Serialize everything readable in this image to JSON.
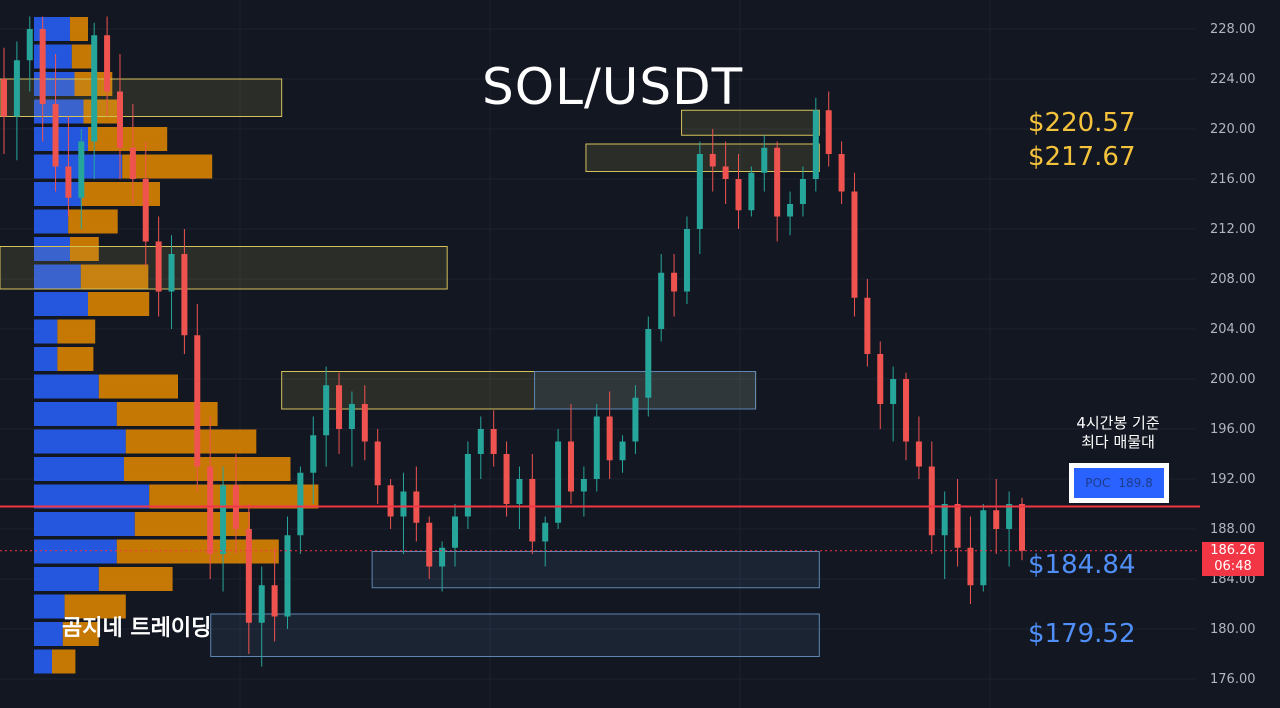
{
  "title": "SOL/USDT",
  "watermark": "곰지네 트레이딩",
  "poc_note": [
    "4시간봉 기준",
    "최다 매물대"
  ],
  "poc_label": "POC",
  "poc_value": "189.8",
  "current_price": "186.26",
  "countdown": "06:48",
  "level_labels": [
    {
      "text": "$220.57",
      "color": "#f5c33b"
    },
    {
      "text": "$217.67",
      "color": "#f5c33b"
    },
    {
      "text": "$184.84",
      "color": "#4f8ff7"
    },
    {
      "text": "$179.52",
      "color": "#4f8ff7"
    }
  ],
  "colors": {
    "up": "#26a69a",
    "down": "#ef5350",
    "poc_line": "#f23645",
    "vp_blue": "#2962ff",
    "vp_orange": "#e68a00",
    "zone_yellow": "#d4c15a",
    "zone_blue": "#5d86b3"
  },
  "chart_data": {
    "type": "candlestick",
    "title": "SOL/USDT",
    "timeframe": "4h",
    "y_range": [
      175,
      230
    ],
    "y_ticks": [
      176,
      180,
      184,
      188,
      192,
      196,
      200,
      204,
      208,
      212,
      216,
      220,
      224,
      228
    ],
    "y_tick_labels": [
      "176.00",
      "180.00",
      "184.00",
      "188.00",
      "192.00",
      "196.00",
      "200.00",
      "204.00",
      "208.00",
      "212.00",
      "216.00",
      "220.00",
      "224.00",
      "228.00"
    ],
    "poc": 189.8,
    "last_price": 186.26,
    "levels": [
      220.57,
      217.67,
      184.84,
      179.52
    ],
    "zones": [
      {
        "kind": "supply",
        "x0": 0.0,
        "x1": 0.274,
        "low": 221.0,
        "high": 224.0
      },
      {
        "kind": "supply",
        "x0": 0.0,
        "x1": 0.435,
        "low": 207.2,
        "high": 210.6
      },
      {
        "kind": "supply",
        "x0": 0.274,
        "x1": 0.735,
        "low": 197.6,
        "high": 200.6
      },
      {
        "kind": "demand",
        "x0": 0.52,
        "x1": 0.735,
        "low": 197.6,
        "high": 200.6
      },
      {
        "kind": "supply",
        "x0": 0.663,
        "x1": 0.797,
        "low": 219.5,
        "high": 221.5
      },
      {
        "kind": "supply",
        "x0": 0.57,
        "x1": 0.797,
        "low": 216.6,
        "high": 218.8
      },
      {
        "kind": "demand",
        "x0": 0.362,
        "x1": 0.797,
        "low": 183.3,
        "high": 186.2
      },
      {
        "kind": "demand",
        "x0": 0.205,
        "x1": 0.797,
        "low": 177.8,
        "high": 181.2
      }
    ],
    "volume_profile": [
      {
        "price": 228.0,
        "up": 40,
        "down": 20
      },
      {
        "price": 225.8,
        "up": 42,
        "down": 28
      },
      {
        "price": 223.6,
        "up": 45,
        "down": 42
      },
      {
        "price": 221.4,
        "up": 55,
        "down": 38
      },
      {
        "price": 219.2,
        "up": 60,
        "down": 88
      },
      {
        "price": 217.0,
        "up": 98,
        "down": 100
      },
      {
        "price": 214.8,
        "up": 52,
        "down": 88
      },
      {
        "price": 212.6,
        "up": 38,
        "down": 55
      },
      {
        "price": 210.4,
        "up": 40,
        "down": 32
      },
      {
        "price": 208.2,
        "up": 52,
        "down": 75
      },
      {
        "price": 206.0,
        "up": 60,
        "down": 68
      },
      {
        "price": 203.8,
        "up": 26,
        "down": 42
      },
      {
        "price": 201.6,
        "up": 26,
        "down": 40
      },
      {
        "price": 199.4,
        "up": 72,
        "down": 88
      },
      {
        "price": 197.2,
        "up": 92,
        "down": 112
      },
      {
        "price": 195.0,
        "up": 102,
        "down": 145
      },
      {
        "price": 192.8,
        "up": 100,
        "down": 185
      },
      {
        "price": 190.6,
        "up": 128,
        "down": 188
      },
      {
        "price": 188.4,
        "up": 112,
        "down": 128
      },
      {
        "price": 186.2,
        "up": 92,
        "down": 180
      },
      {
        "price": 184.0,
        "up": 72,
        "down": 82
      },
      {
        "price": 181.8,
        "up": 34,
        "down": 68
      },
      {
        "price": 179.6,
        "up": 32,
        "down": 40
      },
      {
        "price": 177.4,
        "up": 20,
        "down": 26
      }
    ],
    "candles": [
      [
        224.0,
        226.5,
        218.0,
        221.0
      ],
      [
        221.0,
        227.0,
        217.5,
        225.5
      ],
      [
        225.5,
        229.0,
        223.0,
        228.0
      ],
      [
        228.0,
        229.0,
        219.0,
        222.0
      ],
      [
        222.0,
        226.0,
        215.0,
        217.0
      ],
      [
        217.0,
        221.0,
        213.0,
        214.5
      ],
      [
        214.5,
        220.0,
        212.0,
        219.0
      ],
      [
        219.0,
        228.5,
        216.0,
        227.5
      ],
      [
        227.5,
        229.0,
        221.0,
        223.0
      ],
      [
        223.0,
        226.0,
        216.0,
        218.5
      ],
      [
        218.5,
        222.0,
        214.0,
        216.0
      ],
      [
        216.0,
        219.0,
        209.0,
        211.0
      ],
      [
        211.0,
        213.0,
        205.0,
        207.0
      ],
      [
        207.0,
        211.5,
        204.0,
        210.0
      ],
      [
        210.0,
        212.0,
        202.0,
        203.5
      ],
      [
        203.5,
        206.0,
        191.0,
        193.0
      ],
      [
        193.0,
        197.0,
        184.0,
        186.0
      ],
      [
        186.0,
        193.0,
        183.0,
        191.5
      ],
      [
        191.5,
        194.0,
        186.0,
        188.0
      ],
      [
        188.0,
        190.0,
        178.0,
        180.5
      ],
      [
        180.5,
        185.0,
        177.0,
        183.5
      ],
      [
        183.5,
        186.5,
        179.0,
        181.0
      ],
      [
        181.0,
        189.0,
        180.0,
        187.5
      ],
      [
        187.5,
        193.0,
        186.0,
        192.5
      ],
      [
        192.5,
        197.0,
        190.0,
        195.5
      ],
      [
        195.5,
        201.0,
        193.0,
        199.5
      ],
      [
        199.5,
        200.5,
        194.0,
        196.0
      ],
      [
        196.0,
        199.0,
        193.0,
        198.0
      ],
      [
        198.0,
        199.5,
        193.5,
        195.0
      ],
      [
        195.0,
        196.0,
        190.0,
        191.5
      ],
      [
        191.5,
        192.0,
        188.0,
        189.0
      ],
      [
        189.0,
        192.5,
        186.0,
        191.0
      ],
      [
        191.0,
        193.0,
        187.0,
        188.5
      ],
      [
        188.5,
        189.0,
        184.0,
        185.0
      ],
      [
        185.0,
        187.0,
        183.0,
        186.5
      ],
      [
        186.5,
        190.0,
        185.0,
        189.0
      ],
      [
        189.0,
        195.0,
        188.0,
        194.0
      ],
      [
        194.0,
        197.0,
        192.0,
        196.0
      ],
      [
        196.0,
        197.5,
        193.0,
        194.0
      ],
      [
        194.0,
        195.0,
        189.0,
        190.0
      ],
      [
        190.0,
        193.0,
        188.0,
        192.0
      ],
      [
        192.0,
        194.0,
        186.0,
        187.0
      ],
      [
        187.0,
        189.0,
        185.0,
        188.5
      ],
      [
        188.5,
        196.0,
        188.0,
        195.0
      ],
      [
        195.0,
        198.0,
        190.0,
        191.0
      ],
      [
        191.0,
        193.0,
        189.0,
        192.0
      ],
      [
        192.0,
        198.0,
        191.0,
        197.0
      ],
      [
        197.0,
        199.0,
        192.0,
        193.5
      ],
      [
        193.5,
        195.5,
        192.5,
        195.0
      ],
      [
        195.0,
        199.5,
        194.0,
        198.5
      ],
      [
        198.5,
        205.0,
        197.0,
        204.0
      ],
      [
        204.0,
        210.0,
        203.0,
        208.5
      ],
      [
        208.5,
        210.0,
        205.0,
        207.0
      ],
      [
        207.0,
        213.0,
        206.0,
        212.0
      ],
      [
        212.0,
        219.0,
        210.0,
        218.0
      ],
      [
        218.0,
        220.0,
        215.0,
        217.0
      ],
      [
        217.0,
        219.0,
        214.0,
        216.0
      ],
      [
        216.0,
        218.0,
        212.0,
        213.5
      ],
      [
        213.5,
        217.0,
        213.0,
        216.5
      ],
      [
        216.5,
        219.5,
        215.0,
        218.5
      ],
      [
        218.5,
        219.0,
        211.0,
        213.0
      ],
      [
        213.0,
        215.0,
        211.5,
        214.0
      ],
      [
        214.0,
        217.0,
        213.0,
        216.0
      ],
      [
        216.0,
        222.5,
        215.0,
        221.5
      ],
      [
        221.5,
        223.0,
        217.0,
        218.0
      ],
      [
        218.0,
        219.0,
        214.0,
        215.0
      ],
      [
        215.0,
        216.5,
        205.0,
        206.5
      ],
      [
        206.5,
        208.0,
        201.0,
        202.0
      ],
      [
        202.0,
        203.0,
        196.0,
        198.0
      ],
      [
        198.0,
        201.0,
        195.0,
        200.0
      ],
      [
        200.0,
        200.5,
        193.5,
        195.0
      ],
      [
        195.0,
        197.0,
        192.0,
        193.0
      ],
      [
        193.0,
        195.0,
        186.0,
        187.5
      ],
      [
        187.5,
        191.0,
        184.0,
        190.0
      ],
      [
        190.0,
        192.0,
        185.0,
        186.5
      ],
      [
        186.5,
        189.0,
        182.0,
        183.5
      ],
      [
        183.5,
        190.0,
        183.0,
        189.5
      ],
      [
        189.5,
        192.0,
        186.0,
        188.0
      ],
      [
        188.0,
        191.0,
        185.0,
        190.0
      ],
      [
        190.0,
        190.5,
        185.5,
        186.26
      ]
    ]
  }
}
